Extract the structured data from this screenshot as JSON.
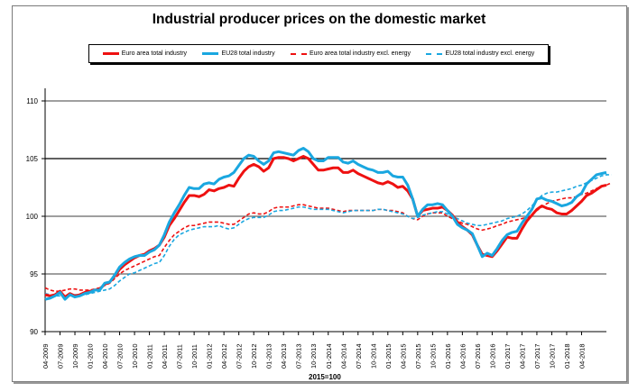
{
  "chart_data": {
    "type": "line",
    "title": "Industrial producer prices on the domestic market",
    "xlabel": "2015=100",
    "ylabel": "",
    "ylim": [
      90,
      110
    ],
    "yticks": [
      90,
      95,
      100,
      105,
      110
    ],
    "grid": true,
    "legend_position": "top",
    "x_start": "04-2009",
    "x_frequency": "monthly",
    "x_tick_labels": [
      "04-2009",
      "07-2009",
      "10-2009",
      "01-2010",
      "04-2010",
      "07-2010",
      "10-2010",
      "01-2011",
      "04-2011",
      "07-2011",
      "10-2011",
      "01-2012",
      "04-2012",
      "07-2012",
      "10-2012",
      "01-2013",
      "04-2013",
      "07-2013",
      "10-2013",
      "01-2014",
      "04-2014",
      "07-2014",
      "10-2014",
      "01-2015",
      "04-2015",
      "07-2015",
      "10-2015",
      "01-2016",
      "04-2016",
      "07-2016",
      "10-2016",
      "01-2017",
      "04-2017",
      "07-2017",
      "10-2017",
      "01-2018",
      "04-2018"
    ],
    "series": [
      {
        "name": "Euro area total industry",
        "color": "#ee1111",
        "style": "solid",
        "values": [
          93.2,
          93.1,
          93.2,
          93.5,
          93.0,
          93.3,
          93.1,
          93.2,
          93.4,
          93.5,
          93.6,
          93.7,
          94.1,
          94.3,
          94.8,
          95.4,
          95.8,
          96.1,
          96.4,
          96.6,
          96.7,
          97.0,
          97.2,
          97.5,
          98.2,
          99.2,
          99.8,
          100.5,
          101.2,
          101.8,
          101.8,
          101.7,
          101.9,
          102.3,
          102.2,
          102.4,
          102.5,
          102.7,
          102.6,
          103.3,
          103.9,
          104.3,
          104.5,
          104.3,
          103.9,
          104.2,
          105.0,
          105.1,
          105.1,
          105.0,
          104.8,
          105.0,
          105.2,
          105.0,
          104.5,
          104.0,
          104.0,
          104.1,
          104.2,
          104.2,
          103.8,
          103.8,
          104.0,
          103.7,
          103.5,
          103.3,
          103.1,
          102.9,
          102.8,
          103.0,
          102.8,
          102.5,
          102.6,
          102.2,
          101.5,
          100.0,
          100.5,
          100.6,
          100.7,
          100.7,
          100.8,
          100.5,
          100.1,
          99.5,
          99.1,
          98.8,
          98.4,
          97.5,
          96.7,
          96.6,
          96.5,
          97.0,
          97.6,
          98.2,
          98.1,
          98.1,
          98.9,
          99.6,
          100.1,
          100.6,
          100.9,
          100.7,
          100.6,
          100.3,
          100.2,
          100.2,
          100.5,
          100.9,
          101.3,
          101.8,
          102.0,
          102.3,
          102.6,
          102.7
        ]
      },
      {
        "name": "EU28 total industry",
        "color": "#1aa7e0",
        "style": "solid",
        "values": [
          92.8,
          92.9,
          93.1,
          93.4,
          92.8,
          93.2,
          93.0,
          93.1,
          93.3,
          93.4,
          93.6,
          93.6,
          94.2,
          94.3,
          94.9,
          95.6,
          96.0,
          96.3,
          96.5,
          96.6,
          96.6,
          96.9,
          97.1,
          97.5,
          98.4,
          99.5,
          100.3,
          101.0,
          101.8,
          102.5,
          102.4,
          102.4,
          102.8,
          102.9,
          102.8,
          103.2,
          103.4,
          103.5,
          103.8,
          104.4,
          105.0,
          105.3,
          105.2,
          104.8,
          104.5,
          104.8,
          105.5,
          105.6,
          105.5,
          105.4,
          105.3,
          105.7,
          105.9,
          105.6,
          105.0,
          104.8,
          104.8,
          105.1,
          105.1,
          105.1,
          104.7,
          104.6,
          104.8,
          104.5,
          104.3,
          104.1,
          104.0,
          103.8,
          103.8,
          103.9,
          103.5,
          103.4,
          103.4,
          102.7,
          101.5,
          100.0,
          100.6,
          101.0,
          101.0,
          101.1,
          101.0,
          100.5,
          100.0,
          99.3,
          99.0,
          98.8,
          98.5,
          97.5,
          96.5,
          96.8,
          96.6,
          97.2,
          97.9,
          98.4,
          98.6,
          98.7,
          99.4,
          100.0,
          100.6,
          101.5,
          101.6,
          101.4,
          101.3,
          101.1,
          100.9,
          101.0,
          101.2,
          101.7,
          102.0,
          102.8,
          103.2,
          103.6,
          103.7,
          103.8
        ]
      },
      {
        "name": "Euro area total industry excl. energy",
        "color": "#ee1111",
        "style": "dashed",
        "values": [
          93.8,
          93.6,
          93.5,
          93.5,
          93.6,
          93.7,
          93.7,
          93.6,
          93.6,
          93.6,
          93.7,
          93.8,
          94.0,
          94.2,
          94.6,
          95.0,
          95.3,
          95.5,
          95.7,
          95.9,
          96.1,
          96.3,
          96.5,
          96.6,
          97.3,
          97.9,
          98.4,
          98.7,
          99.0,
          99.2,
          99.2,
          99.3,
          99.4,
          99.5,
          99.5,
          99.5,
          99.4,
          99.3,
          99.3,
          99.6,
          99.9,
          100.2,
          100.3,
          100.2,
          100.2,
          100.4,
          100.7,
          100.8,
          100.8,
          100.8,
          100.9,
          101.0,
          101.0,
          100.9,
          100.8,
          100.7,
          100.7,
          100.7,
          100.6,
          100.5,
          100.4,
          100.5,
          100.5,
          100.5,
          100.5,
          100.5,
          100.5,
          100.6,
          100.6,
          100.5,
          100.5,
          100.4,
          100.3,
          100.0,
          99.8,
          99.7,
          100.0,
          100.2,
          100.3,
          100.3,
          100.3,
          100.0,
          99.8,
          99.6,
          99.4,
          99.3,
          99.1,
          98.9,
          98.8,
          98.9,
          99.0,
          99.2,
          99.3,
          99.5,
          99.6,
          99.7,
          99.8,
          99.9,
          100.1,
          100.5,
          100.8,
          101.1,
          101.3,
          101.4,
          101.5,
          101.6,
          101.6,
          101.7,
          101.9,
          102.0,
          102.2,
          102.4,
          102.6,
          102.7,
          102.9
        ]
      },
      {
        "name": "EU28 total industry excl. energy",
        "color": "#1aa7e0",
        "style": "dashed",
        "values": [
          93.3,
          93.2,
          93.1,
          93.1,
          93.1,
          93.1,
          93.2,
          93.2,
          93.2,
          93.3,
          93.4,
          93.5,
          93.6,
          93.7,
          94.0,
          94.4,
          94.7,
          95.0,
          95.1,
          95.3,
          95.5,
          95.7,
          95.9,
          96.0,
          96.6,
          97.4,
          98.0,
          98.4,
          98.6,
          98.8,
          98.9,
          99.0,
          99.1,
          99.1,
          99.1,
          99.2,
          99.0,
          98.9,
          99.0,
          99.3,
          99.6,
          99.8,
          99.9,
          99.9,
          99.9,
          100.1,
          100.4,
          100.5,
          100.5,
          100.6,
          100.7,
          100.8,
          100.8,
          100.7,
          100.6,
          100.6,
          100.6,
          100.6,
          100.5,
          100.4,
          100.3,
          100.4,
          100.5,
          100.5,
          100.5,
          100.5,
          100.5,
          100.6,
          100.6,
          100.5,
          100.4,
          100.3,
          100.2,
          100.0,
          99.8,
          99.9,
          100.1,
          100.2,
          100.3,
          100.4,
          100.4,
          100.2,
          100.0,
          99.8,
          99.6,
          99.4,
          99.3,
          99.2,
          99.2,
          99.3,
          99.4,
          99.5,
          99.6,
          99.8,
          99.9,
          100.0,
          100.2,
          100.5,
          100.9,
          101.4,
          101.8,
          102.0,
          102.1,
          102.1,
          102.2,
          102.3,
          102.4,
          102.6,
          102.7,
          102.9,
          103.1,
          103.3,
          103.5,
          103.6,
          103.6
        ]
      }
    ]
  }
}
